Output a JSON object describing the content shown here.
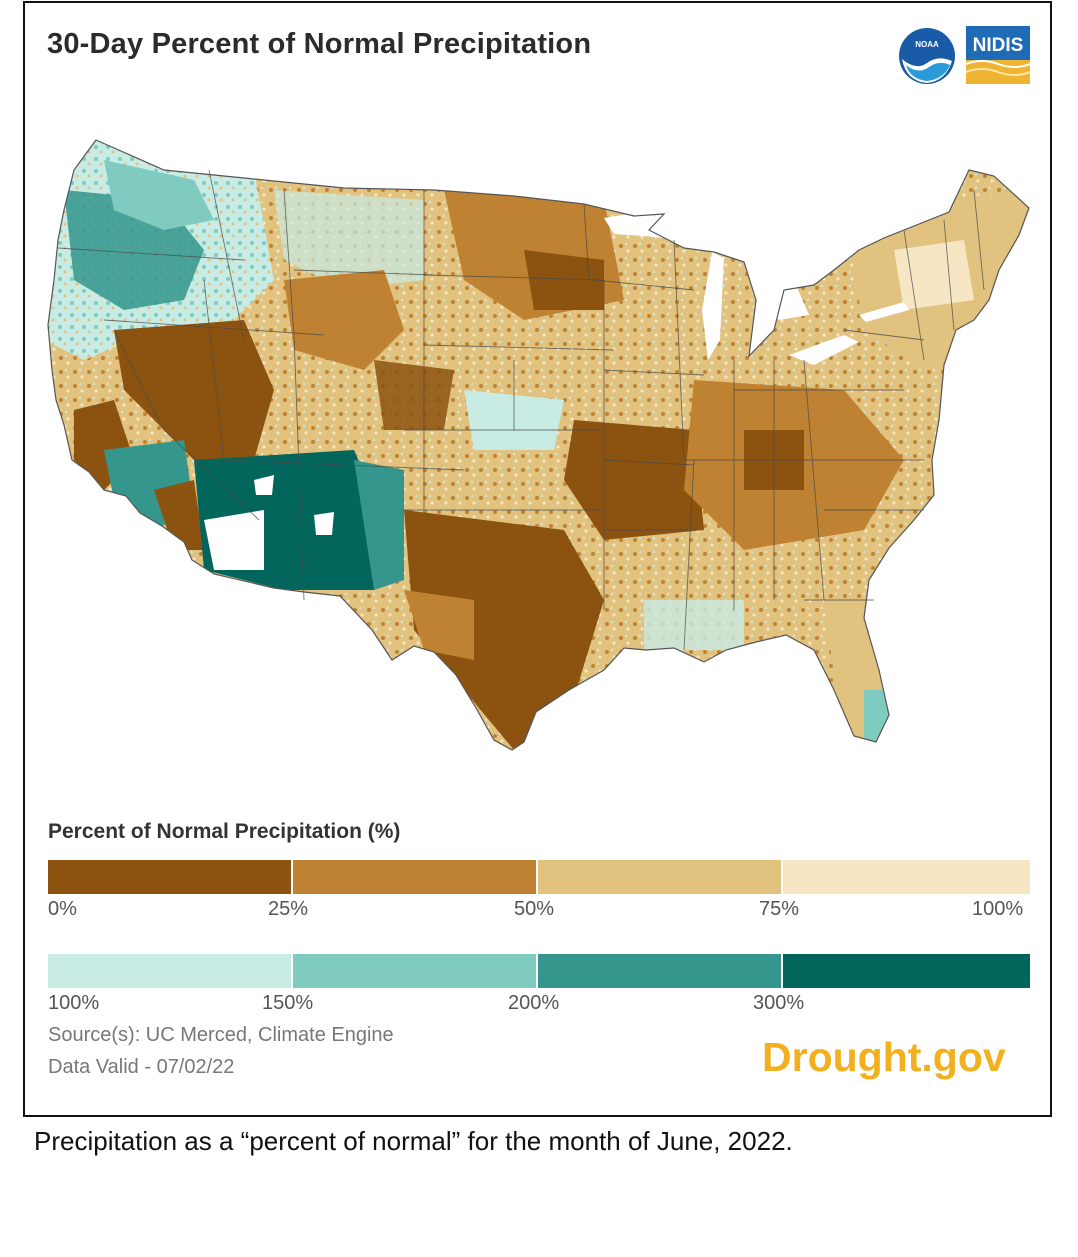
{
  "title": "30-Day Percent of Normal Precipitation",
  "logos": {
    "noaa": "NOAA",
    "nidis": "NIDIS"
  },
  "legend": {
    "title": "Percent of Normal Precipitation (%)",
    "dry": {
      "colors": [
        "#8c5310",
        "#bf8132",
        "#e1c27e",
        "#f6e6c4"
      ],
      "ticks": [
        "0%",
        "25%",
        "50%",
        "75%",
        "100%"
      ]
    },
    "wet": {
      "colors": [
        "#c8ebe4",
        "#7fcbbf",
        "#34968d",
        "#02665d"
      ],
      "ticks": [
        "100%",
        "150%",
        "200%",
        "300%"
      ]
    }
  },
  "source": "Source(s): UC Merced, Climate Engine",
  "data_valid": "Data Valid - 07/02/22",
  "brand": "Drought.gov",
  "caption": "Precipitation as a “percent of normal” for the month of June, 2022.",
  "map": {
    "subject": "contiguous United States",
    "colors": {
      "dry_dark": "#8c5310",
      "dry_mid": "#bf8132",
      "dry_light": "#e1c27e",
      "near_normal": "#f6e6c4",
      "wet_light": "#c8ebe4",
      "wet_mid": "#7fcbbf",
      "wet_dark": "#34968d",
      "wet_darkest": "#02665d"
    }
  }
}
